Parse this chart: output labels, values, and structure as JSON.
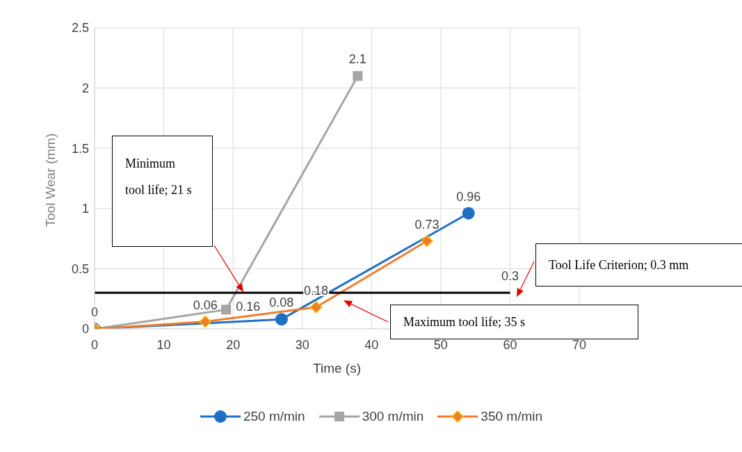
{
  "chart_data": {
    "type": "line",
    "xlabel": "Time (s)",
    "ylabel": "Tool Wear (mm)",
    "xlim": [
      0,
      70
    ],
    "xticks": [
      0,
      10,
      20,
      30,
      40,
      50,
      60,
      70
    ],
    "ylim": [
      0,
      2.5
    ],
    "yticks": [
      0,
      0.5,
      1,
      1.5,
      2,
      2.5
    ],
    "grid": true,
    "legend": "bottom",
    "series": [
      {
        "name": "250 m/min",
        "color": "#1f6fc5",
        "marker": "circle",
        "x": [
          0,
          27,
          54
        ],
        "values": [
          0,
          0.08,
          0.96
        ],
        "value_labels": [
          "0",
          "0.08",
          "0.96"
        ]
      },
      {
        "name": "300 m/min",
        "color": "#a5a5a5",
        "marker": "square",
        "x": [
          0,
          19,
          38
        ],
        "values": [
          0,
          0.16,
          2.1
        ],
        "value_labels": [
          "0",
          "0.16",
          "2.1"
        ]
      },
      {
        "name": "350 m/min",
        "color": "#ed7d31",
        "marker": "diamond",
        "x": [
          0,
          16,
          32,
          48
        ],
        "values": [
          0,
          0.06,
          0.18,
          0.73
        ],
        "value_labels": [
          "0",
          "0.06",
          "0.18",
          "0.73"
        ]
      },
      {
        "color": "#000000",
        "marker": "none",
        "x": [
          0,
          60
        ],
        "values": [
          0.3,
          0.3
        ],
        "value_labels": [
          null,
          "0.3"
        ]
      }
    ],
    "annotations": [
      "Minimum tool life; 21 s",
      "Maximum tool life; 35 s",
      "Tool Life Criterion; 0.3 mm"
    ]
  }
}
